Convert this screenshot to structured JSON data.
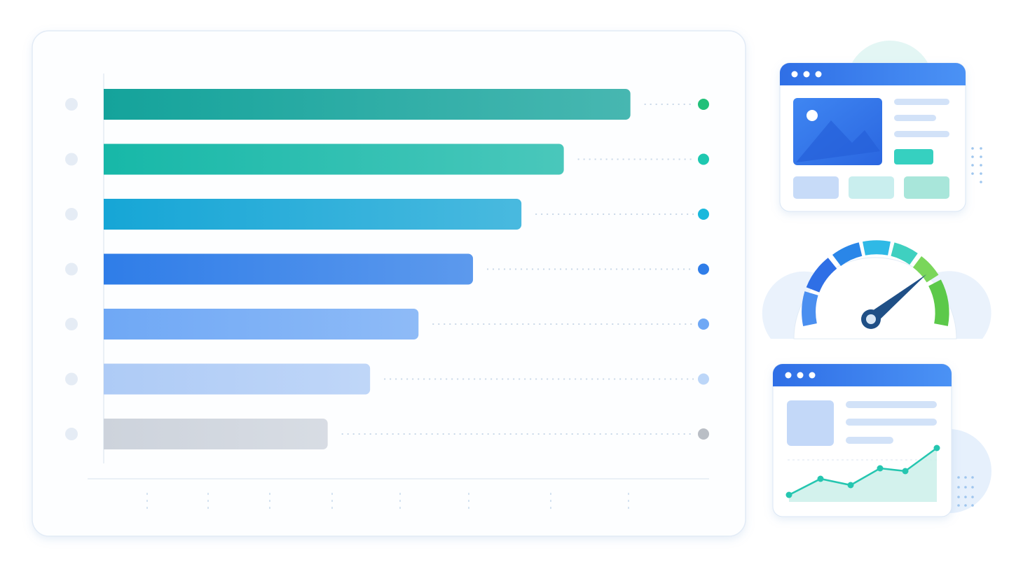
{
  "chart_data": {
    "type": "bar",
    "orientation": "horizontal",
    "categories": [
      null,
      null,
      null,
      null,
      null,
      null,
      null
    ],
    "values": [
      87,
      76,
      69,
      61,
      52,
      44,
      37
    ],
    "colors": [
      "#14a39b",
      "#17b8a8",
      "#16a6d6",
      "#2f7de8",
      "#6fa8f5",
      "#aecbf6",
      "#cdd3dc"
    ],
    "marker_colors": [
      "#22c07a",
      "#1ec8b0",
      "#1ab8dc",
      "#2f7de8",
      "#6fa8f5",
      "#bcd6f8",
      "#b9bec5"
    ],
    "xlim": [
      0,
      100
    ]
  }
}
